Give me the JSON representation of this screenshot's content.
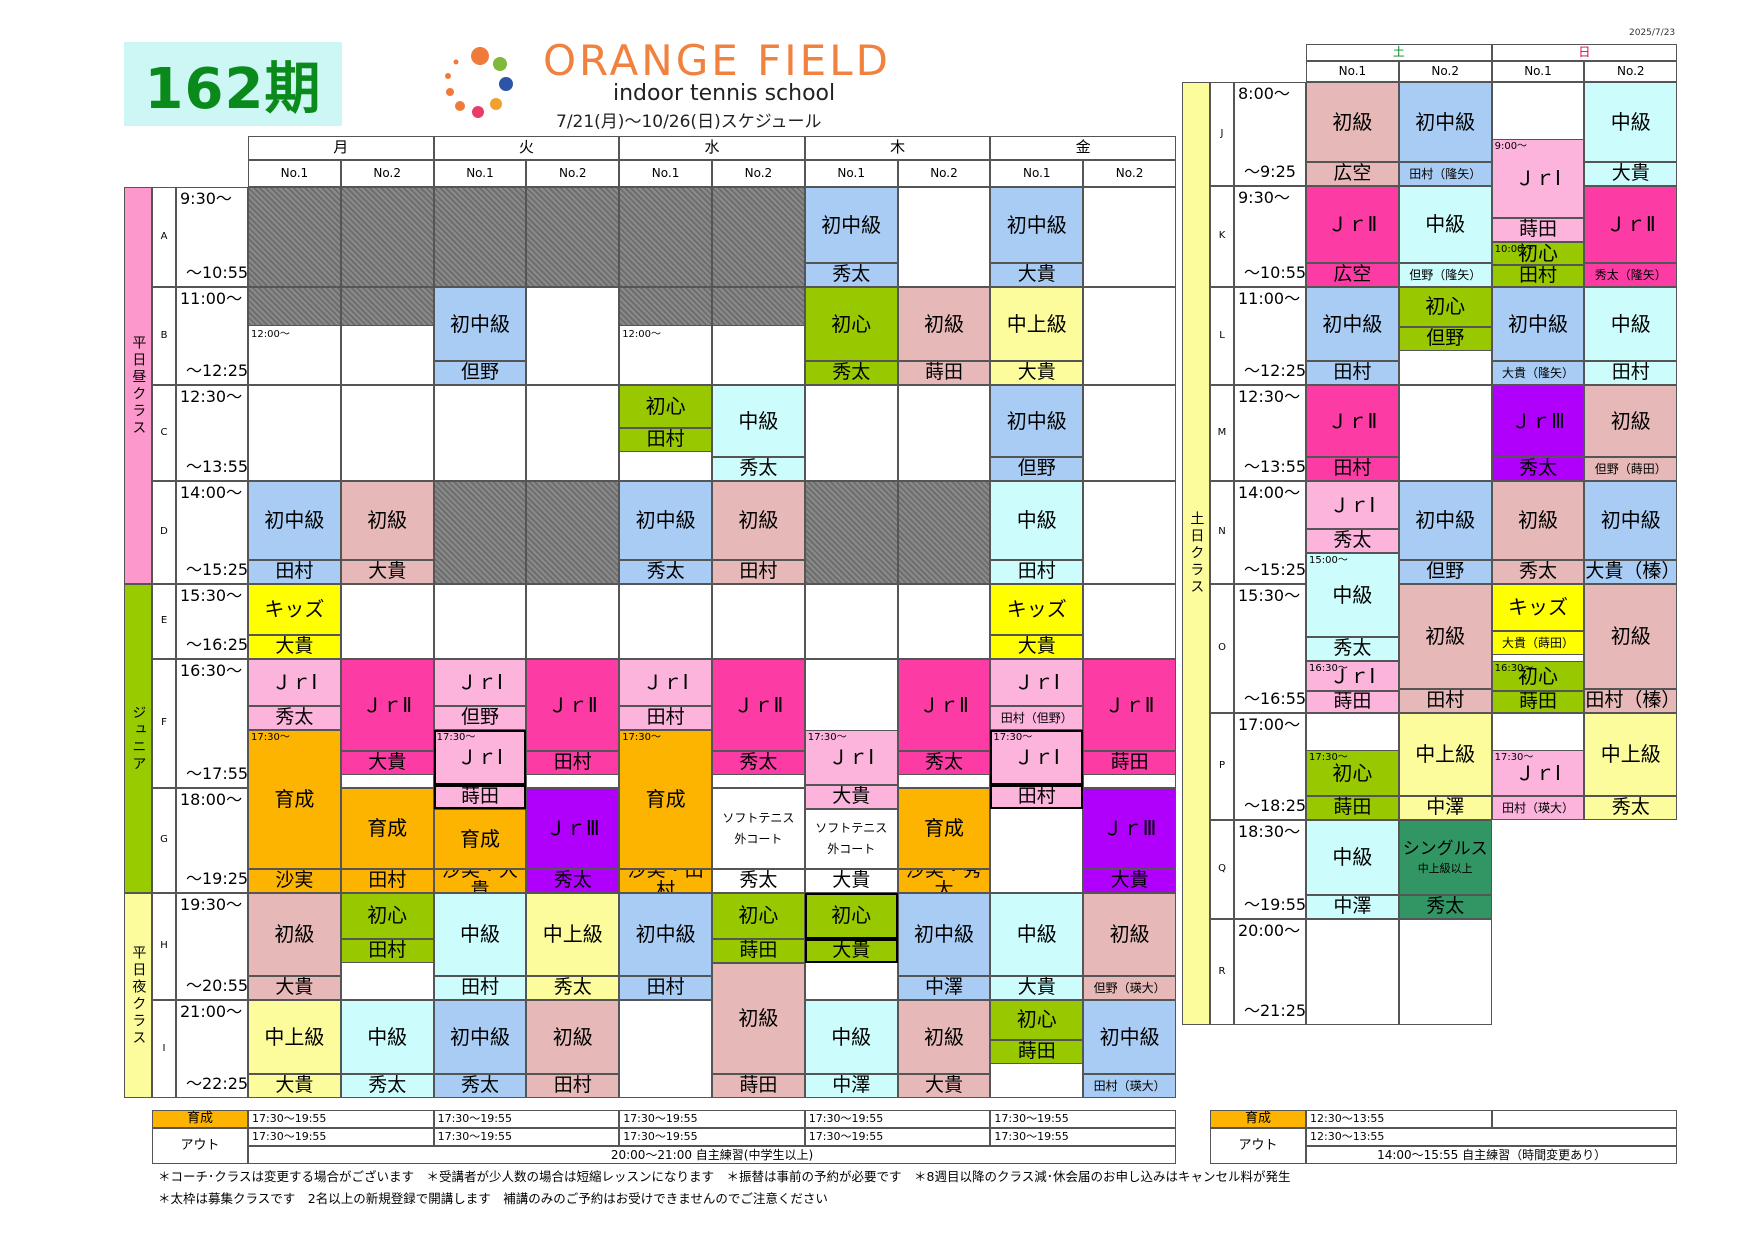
{
  "term": "162期",
  "brand": {
    "name": "ORANGE FIELD",
    "subtitle": "indoor tennis school",
    "period": "7/21(月)～10/26(日)スケジュール"
  },
  "date": "2025/7/23",
  "colors": {
    "初中級": "#a8ccf4",
    "初級": "#e6b8b7",
    "中級": "#ccfcfc",
    "中上級": "#fcfc9c",
    "初心": "#98c800",
    "キッズ": "#ffff00",
    "JrI": "#fcb4dc",
    "JrII": "#fc3ca4",
    "JrIII": "#b000fc",
    "育成": "#fcb400",
    "シングルス": "#329664",
    "closed": "#7a7a7a",
    "coach": "#ffffff",
    "weekday_day": "#fc98cc",
    "junior": "#98cc00",
    "weekday_night": "#fcfc9c",
    "weekend": "#fcfc9c"
  },
  "weekday": {
    "days": [
      "月",
      "火",
      "水",
      "木",
      "金"
    ],
    "courts": [
      "No.1",
      "No.2"
    ],
    "group_labels": [
      {
        "label": "平日昼クラス",
        "rows": [
          0,
          3
        ],
        "color": "#fc98cc"
      },
      {
        "label": "ジュニア",
        "rows": [
          4,
          6
        ],
        "color": "#98cc00"
      },
      {
        "label": "平日夜クラス",
        "rows": [
          7,
          8
        ],
        "color": "#fcfc9c"
      }
    ],
    "rows": [
      {
        "letter": "A",
        "start": "9:30～",
        "end": "～10:55"
      },
      {
        "letter": "B",
        "start": "11:00～",
        "end": "～12:25"
      },
      {
        "letter": "C",
        "start": "12:30～",
        "end": "～13:55"
      },
      {
        "letter": "D",
        "start": "14:00～",
        "end": "～15:25"
      },
      {
        "letter": "E",
        "start": "15:30～",
        "end": "～16:25"
      },
      {
        "letter": "F",
        "start": "16:30～",
        "end": "～17:55"
      },
      {
        "letter": "G",
        "start": "18:00～",
        "end": "～19:25"
      },
      {
        "letter": "H",
        "start": "19:30～",
        "end": "～20:55"
      },
      {
        "letter": "I",
        "start": "21:00～",
        "end": "～22:25"
      }
    ],
    "cells": [
      {
        "c": 0,
        "r": 0,
        "type": "closed"
      },
      {
        "c": 1,
        "r": 0,
        "type": "closed"
      },
      {
        "c": 2,
        "r": 0,
        "type": "closed"
      },
      {
        "c": 3,
        "r": 0,
        "type": "closed"
      },
      {
        "c": 4,
        "r": 0,
        "type": "closed"
      },
      {
        "c": 5,
        "r": 0,
        "type": "closed"
      },
      {
        "c": 6,
        "r": 0,
        "cls": "初中級",
        "coach": "秀太"
      },
      {
        "c": 8,
        "r": 0,
        "cls": "初中級",
        "coach": "大貴"
      },
      {
        "c": 0,
        "r": 1,
        "type": "closed_half",
        "note": "12:00～"
      },
      {
        "c": 1,
        "r": 1,
        "type": "closed_half"
      },
      {
        "c": 2,
        "r": 1,
        "cls": "初中級",
        "coach": "但野"
      },
      {
        "c": 4,
        "r": 1,
        "type": "closed_half",
        "note": "12:00～"
      },
      {
        "c": 5,
        "r": 1,
        "type": "closed_half"
      },
      {
        "c": 6,
        "r": 1,
        "cls": "初心",
        "coach": "秀太",
        "style": "split"
      },
      {
        "c": 7,
        "r": 1,
        "cls": "初級",
        "coach": "蒔田"
      },
      {
        "c": 8,
        "r": 1,
        "cls": "中上級",
        "coach": "大貴"
      },
      {
        "c": 4,
        "r": 2,
        "cls": "初心",
        "coach": "田村",
        "style": "top"
      },
      {
        "c": 5,
        "r": 2,
        "cls": "中級",
        "coach": "秀太"
      },
      {
        "c": 8,
        "r": 2,
        "cls": "初中級",
        "coach": "但野"
      },
      {
        "c": 0,
        "r": 3,
        "cls": "初中級",
        "coach": "田村"
      },
      {
        "c": 1,
        "r": 3,
        "cls": "初級",
        "coach": "大貴"
      },
      {
        "c": 2,
        "r": 3,
        "type": "closed",
        "span": 2
      },
      {
        "c": 3,
        "r": 3,
        "type": "closed",
        "span": 2
      },
      {
        "c": 4,
        "r": 3,
        "cls": "初中級",
        "coach": "秀太"
      },
      {
        "c": 5,
        "r": 3,
        "cls": "初級",
        "coach": "田村"
      },
      {
        "c": 6,
        "r": 3,
        "type": "closed",
        "span": 2
      },
      {
        "c": 7,
        "r": 3,
        "type": "closed",
        "span": 2
      },
      {
        "c": 8,
        "r": 3,
        "cls": "中級",
        "coach": "田村"
      },
      {
        "c": 0,
        "r": 4,
        "cls": "キッズ",
        "coach": "大貴",
        "style": "split"
      },
      {
        "c": 8,
        "r": 4,
        "cls": "キッズ",
        "coach": "大貴",
        "style": "split"
      }
    ],
    "free": [
      {
        "c": 0,
        "r0": 5.0,
        "r1": 5.55,
        "color": "#fcb4dc",
        "label": "ＪｒⅠ",
        "coach": "秀太"
      },
      {
        "c": 0,
        "r0": 5.55,
        "r1": 7.0,
        "color": "#fcb400",
        "label": "育成",
        "coach": "沙実",
        "note": "17:30～"
      },
      {
        "c": 1,
        "r0": 5.0,
        "r1": 5.9,
        "color": "#fc3ca4",
        "label": "ＪｒⅡ",
        "coach": "大貴"
      },
      {
        "c": 1,
        "r0": 6.0,
        "r1": 7.0,
        "color": "#fcb400",
        "label": "育成",
        "coach": "田村"
      },
      {
        "c": 2,
        "r0": 5.0,
        "r1": 5.55,
        "color": "#fcb4dc",
        "label": "ＪｒⅠ",
        "coach": "但野"
      },
      {
        "c": 2,
        "r0": 5.55,
        "r1": 6.2,
        "color": "#fcb4dc",
        "label": "ＪｒⅠ",
        "coach": "蒔田",
        "note": "17:30～",
        "bold": true
      },
      {
        "c": 2,
        "r0": 6.2,
        "r1": 7.0,
        "color": "#fcb400",
        "label": "育成",
        "coach": "沙実・大貴"
      },
      {
        "c": 3,
        "r0": 5.0,
        "r1": 5.9,
        "color": "#fc3ca4",
        "label": "ＪｒⅡ",
        "coach": "田村"
      },
      {
        "c": 3,
        "r0": 6.0,
        "r1": 7.0,
        "color": "#b000fc",
        "label": "ＪｒⅢ",
        "coach": "秀太"
      },
      {
        "c": 4,
        "r0": 5.0,
        "r1": 5.55,
        "color": "#fcb4dc",
        "label": "ＪｒⅠ",
        "coach": "田村"
      },
      {
        "c": 4,
        "r0": 5.55,
        "r1": 7.0,
        "color": "#fcb400",
        "label": "育成",
        "coach": "沙実・田村",
        "note": "17:30～"
      },
      {
        "c": 5,
        "r0": 5.0,
        "r1": 5.9,
        "color": "#fc3ca4",
        "label": "ＪｒⅡ",
        "coach": "秀太"
      },
      {
        "c": 5,
        "r0": 6.0,
        "r1": 7.0,
        "color": "#ffffff",
        "label": "ソフトテニス",
        "label2": "外コート",
        "coach": "秀太"
      },
      {
        "c": 6,
        "r0": 5.55,
        "r1": 6.2,
        "color": "#fcb4dc",
        "label": "ＪｒⅠ",
        "coach": "大貴",
        "note": "17:30～"
      },
      {
        "c": 6,
        "r0": 6.2,
        "r1": 7.0,
        "color": "#ffffff",
        "label": "ソフトテニス",
        "label2": "外コート",
        "coach": "大貴"
      },
      {
        "c": 7,
        "r0": 5.0,
        "r1": 5.9,
        "color": "#fc3ca4",
        "label": "ＪｒⅡ",
        "coach": "秀太"
      },
      {
        "c": 7,
        "r0": 6.0,
        "r1": 7.0,
        "color": "#fcb400",
        "label": "育成",
        "coach": "沙実・秀太"
      },
      {
        "c": 8,
        "r0": 5.0,
        "r1": 5.55,
        "color": "#fcb4dc",
        "label": "ＪｒⅠ",
        "coach": "田村（但野）",
        "small": true
      },
      {
        "c": 8,
        "r0": 5.55,
        "r1": 6.2,
        "color": "#fcb4dc",
        "label": "ＪｒⅠ",
        "coach": "田村",
        "note": "17:30～",
        "bold": true
      },
      {
        "c": 9,
        "r0": 5.0,
        "r1": 5.9,
        "color": "#fc3ca4",
        "label": "ＪｒⅡ",
        "coach": "蒔田"
      },
      {
        "c": 9,
        "r0": 6.0,
        "r1": 7.0,
        "color": "#b000fc",
        "label": "ＪｒⅢ",
        "coach": "大貴"
      },
      {
        "c": 0,
        "r0": 7.0,
        "r1": 8.0,
        "color": "#e6b8b7",
        "label": "初級",
        "coach": "大貴"
      },
      {
        "c": 1,
        "r0": 7.0,
        "r1": 7.65,
        "color": "#98c800",
        "label": "初心",
        "coach": "田村"
      },
      {
        "c": 2,
        "r0": 7.0,
        "r1": 8.0,
        "color": "#ccfcfc",
        "label": "中級",
        "coach": "田村"
      },
      {
        "c": 3,
        "r0": 7.0,
        "r1": 8.0,
        "color": "#fcfc9c",
        "label": "中上級",
        "coach": "秀太"
      },
      {
        "c": 4,
        "r0": 7.0,
        "r1": 8.0,
        "color": "#a8ccf4",
        "label": "初中級",
        "coach": "田村"
      },
      {
        "c": 5,
        "r0": 7.0,
        "r1": 7.65,
        "color": "#98c800",
        "label": "初心",
        "coach": "蒔田"
      },
      {
        "c": 5,
        "r0": 7.65,
        "r1": 9.0,
        "color": "#e6b8b7",
        "label": "初級",
        "coach": "蒔田"
      },
      {
        "c": 6,
        "r0": 7.0,
        "r1": 7.65,
        "color": "#98c800",
        "label": "初心",
        "coach": "大貴",
        "bold": true
      },
      {
        "c": 7,
        "r0": 7.0,
        "r1": 8.0,
        "color": "#a8ccf4",
        "label": "初中級",
        "coach": "中澤"
      },
      {
        "c": 8,
        "r0": 7.0,
        "r1": 8.0,
        "color": "#ccfcfc",
        "label": "中級",
        "coach": "大貴"
      },
      {
        "c": 9,
        "r0": 7.0,
        "r1": 8.0,
        "color": "#e6b8b7",
        "label": "初級",
        "coach": "但野（瑛大）",
        "small": true
      },
      {
        "c": 0,
        "r0": 8.0,
        "r1": 9.0,
        "color": "#fcfc9c",
        "label": "中上級",
        "coach": "大貴"
      },
      {
        "c": 1,
        "r0": 8.0,
        "r1": 9.0,
        "color": "#ccfcfc",
        "label": "中級",
        "coach": "秀太"
      },
      {
        "c": 2,
        "r0": 8.0,
        "r1": 9.0,
        "color": "#a8ccf4",
        "label": "初中級",
        "coach": "秀太"
      },
      {
        "c": 3,
        "r0": 8.0,
        "r1": 9.0,
        "color": "#e6b8b7",
        "label": "初級",
        "coach": "田村"
      },
      {
        "c": 6,
        "r0": 8.0,
        "r1": 9.0,
        "color": "#ccfcfc",
        "label": "中級",
        "coach": "中澤"
      },
      {
        "c": 7,
        "r0": 8.0,
        "r1": 9.0,
        "color": "#e6b8b7",
        "label": "初級",
        "coach": "大貴"
      },
      {
        "c": 8,
        "r0": 8.0,
        "r1": 8.65,
        "color": "#98c800",
        "label": "初心",
        "coach": "蒔田"
      },
      {
        "c": 9,
        "r0": 8.0,
        "r1": 9.0,
        "color": "#a8ccf4",
        "label": "初中級",
        "coach": "田村（瑛大）",
        "small": true
      }
    ]
  },
  "weekend": {
    "days": [
      "土",
      "日"
    ],
    "courts": [
      "No.1",
      "No.2"
    ],
    "group_label": "土日クラス",
    "rows": [
      {
        "letter": "J",
        "start": "8:00～",
        "end": "～9:25"
      },
      {
        "letter": "K",
        "start": "9:30～",
        "end": "～10:55"
      },
      {
        "letter": "L",
        "start": "11:00～",
        "end": "～12:25"
      },
      {
        "letter": "M",
        "start": "12:30～",
        "end": "～13:55"
      },
      {
        "letter": "N",
        "start": "14:00～",
        "end": "～15:25"
      },
      {
        "letter": "O",
        "start": "15:30～",
        "end": "～16:55"
      },
      {
        "letter": "P",
        "start": "17:00～",
        "end": "～18:25"
      },
      {
        "letter": "Q",
        "start": "18:30～",
        "end": "～19:55"
      },
      {
        "letter": "R",
        "start": "20:00～",
        "end": "～21:25"
      }
    ],
    "free": [
      {
        "c": 0,
        "r0": 0,
        "r1": 1,
        "color": "#e6b8b7",
        "label": "初級",
        "coach": "広空"
      },
      {
        "c": 1,
        "r0": 0,
        "r1": 1,
        "color": "#a8ccf4",
        "label": "初中級",
        "coach": "田村（隆矢）",
        "small": true
      },
      {
        "c": 2,
        "r0": 0.55,
        "r1": 1.55,
        "color": "#fcb4dc",
        "label": "ＪｒⅠ",
        "coach": "蒔田",
        "note": "9:00～"
      },
      {
        "c": 3,
        "r0": 0,
        "r1": 1,
        "color": "#ccfcfc",
        "label": "中級",
        "coach": "大貴"
      },
      {
        "c": 0,
        "r0": 1,
        "r1": 2,
        "color": "#fc3ca4",
        "label": "ＪｒⅡ",
        "coach": "広空"
      },
      {
        "c": 1,
        "r0": 1,
        "r1": 2,
        "color": "#ccfcfc",
        "label": "中級",
        "coach": "但野（隆矢）",
        "small": true
      },
      {
        "c": 2,
        "r0": 1.55,
        "r1": 2,
        "color": "#98c800",
        "label": "初心",
        "coach": "田村",
        "note": "10:00～"
      },
      {
        "c": 3,
        "r0": 1,
        "r1": 2,
        "color": "#fc3ca4",
        "label": "ＪｒⅡ",
        "coach": "秀太（隆矢）",
        "small": true
      },
      {
        "c": 0,
        "r0": 2,
        "r1": 3,
        "color": "#a8ccf4",
        "label": "初中級",
        "coach": "田村"
      },
      {
        "c": 1,
        "r0": 2,
        "r1": 2.65,
        "color": "#98c800",
        "label": "初心",
        "coach": "但野"
      },
      {
        "c": 2,
        "r0": 2,
        "r1": 3,
        "color": "#a8ccf4",
        "label": "初中級",
        "coach": "大貴（隆矢）",
        "small": true
      },
      {
        "c": 3,
        "r0": 2,
        "r1": 3,
        "color": "#ccfcfc",
        "label": "中級",
        "coach": "田村"
      },
      {
        "c": 0,
        "r0": 3,
        "r1": 4,
        "color": "#fc3ca4",
        "label": "ＪｒⅡ",
        "coach": "田村"
      },
      {
        "c": 2,
        "r0": 3,
        "r1": 4,
        "color": "#b000fc",
        "label": "ＪｒⅢ",
        "coach": "秀太"
      },
      {
        "c": 3,
        "r0": 3,
        "r1": 4,
        "color": "#e6b8b7",
        "label": "初級",
        "coach": "但野（蒔田）",
        "small": true
      },
      {
        "c": 0,
        "r0": 4,
        "r1": 4.7,
        "color": "#fcb4dc",
        "label": "ＪｒⅠ",
        "coach": "秀太"
      },
      {
        "c": 1,
        "r0": 4,
        "r1": 5,
        "color": "#a8ccf4",
        "label": "初中級",
        "coach": "但野"
      },
      {
        "c": 2,
        "r0": 4,
        "r1": 5,
        "color": "#e6b8b7",
        "label": "初級",
        "coach": "秀太"
      },
      {
        "c": 3,
        "r0": 4,
        "r1": 5,
        "color": "#a8ccf4",
        "label": "初中級",
        "coach": "大貴（榛）"
      },
      {
        "c": 0,
        "r0": 4.7,
        "r1": 5.6,
        "color": "#ccfcfc",
        "label": "中級",
        "coach": "秀太",
        "note": "15:00～"
      },
      {
        "c": 1,
        "r0": 5,
        "r1": 6,
        "color": "#e6b8b7",
        "label": "初級",
        "coach": "田村"
      },
      {
        "c": 2,
        "r0": 5,
        "r1": 5.55,
        "color": "#ffff00",
        "label": "キッズ",
        "coach": "大貴（蒔田）",
        "small": true
      },
      {
        "c": 3,
        "r0": 5,
        "r1": 6,
        "color": "#e6b8b7",
        "label": "初級",
        "coach": "田村（榛）"
      },
      {
        "c": 0,
        "r0": 5.6,
        "r1": 6,
        "color": "#fcb4dc",
        "label": "ＪｒⅠ",
        "coach": "蒔田",
        "note": "16:30～"
      },
      {
        "c": 2,
        "r0": 5.6,
        "r1": 6,
        "color": "#98c800",
        "label": "初心",
        "coach": "蒔田",
        "note": "16:30～"
      },
      {
        "c": 0,
        "r0": 6.35,
        "r1": 7,
        "color": "#98c800",
        "label": "初心",
        "coach": "蒔田",
        "note": "17:30～"
      },
      {
        "c": 1,
        "r0": 6,
        "r1": 7,
        "color": "#fcfc9c",
        "label": "中上級",
        "coach": "中澤"
      },
      {
        "c": 2,
        "r0": 6.35,
        "r1": 7,
        "color": "#fcb4dc",
        "label": "ＪｒⅠ",
        "coach": "田村（瑛大）",
        "note": "17:30～",
        "small": true
      },
      {
        "c": 3,
        "r0": 6,
        "r1": 7,
        "color": "#fcfc9c",
        "label": "中上級",
        "coach": "秀太"
      },
      {
        "c": 0,
        "r0": 7,
        "r1": 8,
        "color": "#ccfcfc",
        "label": "中級",
        "coach": "中澤"
      },
      {
        "c": 1,
        "r0": 7,
        "r1": 8,
        "color": "#329664",
        "label": "シングルス",
        "label_sub": "中上級以上",
        "coach": "秀太"
      }
    ]
  },
  "footer": {
    "weekday": {
      "ikusei_label": "育成",
      "out_label": "アウト",
      "ikusei": [
        "17:30～19:55",
        "17:30～19:55",
        "17:30～19:55",
        "17:30～19:55",
        "17:30～19:55"
      ],
      "out": [
        "17:30～19:55",
        "17:30～19:55",
        "17:30～19:55",
        "17:30～19:55",
        "17:30～19:55"
      ],
      "self_practice": "20:00～21:00  自主練習(中学生以上)"
    },
    "weekend": {
      "ikusei_label": "育成",
      "out_label": "アウト",
      "ikusei": "12:30～13:55",
      "out": "12:30～13:55",
      "self_practice": "14:00～15:55  自主練習（時間変更あり）"
    }
  },
  "notes": [
    "＊コーチ･クラスは変更する場合がございます　＊受講者が少人数の場合は短縮レッスンになります　＊振替は事前の予約が必要です　＊8週目以降のクラス減･休会届のお申し込みはキャンセル料が発生",
    "＊太枠は募集クラスです　2名以上の新規登録で開講します　補講のみのご予約はお受けできませんのでご注意ください"
  ]
}
